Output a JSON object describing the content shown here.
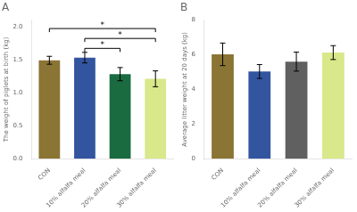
{
  "chart_data": [
    {
      "type": "bar",
      "title": "A",
      "categories": [
        "CON",
        "10% alfalfa meal",
        "20% alfalfa meal",
        "30% alfalfa meal"
      ],
      "values": [
        1.49,
        1.53,
        1.28,
        1.21
      ],
      "errors": [
        0.06,
        0.08,
        0.1,
        0.12
      ],
      "colors": [
        "#8B7535",
        "#3355A0",
        "#1A6B40",
        "#D8E88A"
      ],
      "ylabel": "The weight of piglets at birth (kg)",
      "ylim": [
        0,
        2.1
      ],
      "yticks": [
        {
          "value": 0,
          "label": "0.0"
        },
        0.5,
        {
          "value": 1,
          "label": "1.0"
        },
        1.5,
        {
          "value": 2,
          "label": "2.0"
        }
      ],
      "grid": false,
      "annotations": [
        {
          "label": "*",
          "between": [
            "CON",
            "30% alfalfa meal"
          ],
          "y": 1.97
        },
        {
          "label": "*",
          "between": [
            "10% alfalfa meal",
            "30% alfalfa meal"
          ],
          "y": 1.82
        },
        {
          "label": "*",
          "between": [
            "10% alfalfa meal",
            "20% alfalfa meal"
          ],
          "y": 1.67
        }
      ]
    },
    {
      "type": "bar",
      "title": "B",
      "categories": [
        "CON",
        "10% alfalfa meal",
        "20% alfalfa meal",
        "30% alfalfa meal"
      ],
      "values": [
        6.02,
        5.03,
        5.6,
        6.12
      ],
      "errors": [
        0.65,
        0.4,
        0.55,
        0.4
      ],
      "colors": [
        "#8B7535",
        "#3355A0",
        "#606060",
        "#D8E88A"
      ],
      "ylabel": "Average litter weight at 20 days (kg)",
      "ylim": [
        0,
        8
      ],
      "yticks": [
        0,
        2,
        4,
        6,
        8
      ],
      "grid": false
    }
  ]
}
